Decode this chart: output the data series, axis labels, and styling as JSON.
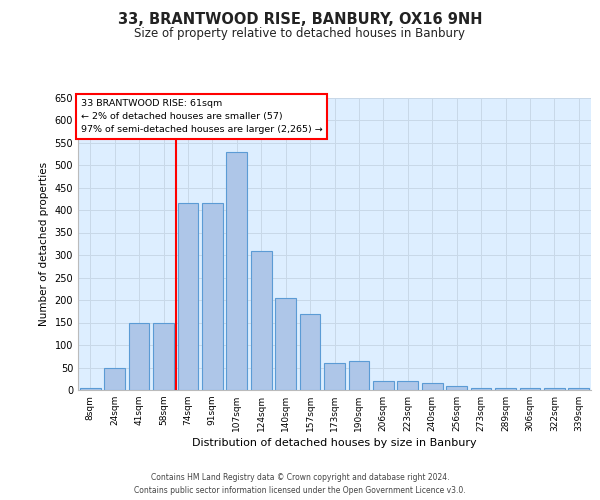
{
  "title1": "33, BRANTWOOD RISE, BANBURY, OX16 9NH",
  "title2": "Size of property relative to detached houses in Banbury",
  "xlabel": "Distribution of detached houses by size in Banbury",
  "ylabel": "Number of detached properties",
  "categories": [
    "8sqm",
    "24sqm",
    "41sqm",
    "58sqm",
    "74sqm",
    "91sqm",
    "107sqm",
    "124sqm",
    "140sqm",
    "157sqm",
    "173sqm",
    "190sqm",
    "206sqm",
    "223sqm",
    "240sqm",
    "256sqm",
    "273sqm",
    "289sqm",
    "306sqm",
    "322sqm",
    "339sqm"
  ],
  "values": [
    5,
    50,
    150,
    150,
    415,
    415,
    530,
    310,
    205,
    170,
    60,
    65,
    20,
    20,
    15,
    10,
    5,
    5,
    5,
    5,
    5
  ],
  "bar_color": "#aec6e8",
  "bar_edge_color": "#5b9bd5",
  "grid_color": "#c8d8e8",
  "bg_color": "#ddeeff",
  "redline_index": 3,
  "annotation_line1": "33 BRANTWOOD RISE: 61sqm",
  "annotation_line2": "← 2% of detached houses are smaller (57)",
  "annotation_line3": "97% of semi-detached houses are larger (2,265) →",
  "ylim": [
    0,
    650
  ],
  "yticks": [
    0,
    50,
    100,
    150,
    200,
    250,
    300,
    350,
    400,
    450,
    500,
    550,
    600,
    650
  ],
  "footer1": "Contains HM Land Registry data © Crown copyright and database right 2024.",
  "footer2": "Contains public sector information licensed under the Open Government Licence v3.0."
}
